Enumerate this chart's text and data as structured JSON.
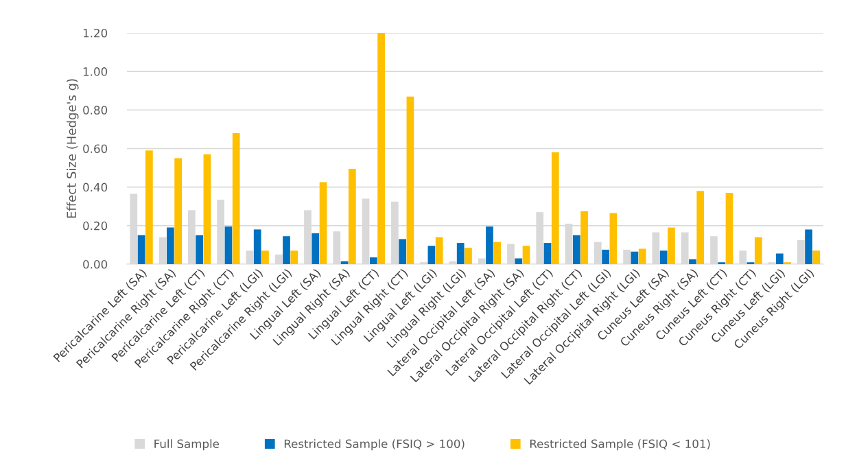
{
  "chart_data": {
    "type": "bar",
    "ylabel": "Effect Size (Hedge's g)",
    "categories": [
      "Pericalcarine Left (SA)",
      "Pericalcarine Right (SA)",
      "Pericalcarine Left (CT)",
      "Pericalcarine Right (CT)",
      "Pericalcarine Left (LGI)",
      "Pericalcarine Right (LGI)",
      "Lingual Left (SA)",
      "Lingual Right (SA)",
      "Lingual Left (CT)",
      "Lingual Right (CT)",
      "Lingual Left (LGI)",
      "Lingual Right (LGI)",
      "Lateral Occipital Left (SA)",
      "Lateral Occipital Right (SA)",
      "Lateral Occipital Left (CT)",
      "Lateral Occipital Right (CT)",
      "Lateral Occipital Left (LGI)",
      "Lateral Occipital Right (LGI)",
      "Cuneus Left (SA)",
      "Cuneus Right (SA)",
      "Cuneus Left (CT)",
      "Cuneus Right (CT)",
      "Cuneus Left (LGI)",
      "Cuneus Right (LGI)"
    ],
    "series": [
      {
        "name": "Full Sample",
        "color": "#d9d9d9",
        "values": [
          0.365,
          0.14,
          0.28,
          0.335,
          0.07,
          0.05,
          0.28,
          0.17,
          0.34,
          0.325,
          0.01,
          0.015,
          0.03,
          0.105,
          0.27,
          0.21,
          0.115,
          0.075,
          0.165,
          0.165,
          0.145,
          0.07,
          0.01,
          0.125
        ]
      },
      {
        "name": "Restricted Sample (FSIQ > 100)",
        "color": "#0070c0",
        "values": [
          0.15,
          0.19,
          0.15,
          0.195,
          0.18,
          0.145,
          0.16,
          0.015,
          0.035,
          0.13,
          0.095,
          0.11,
          0.195,
          0.03,
          0.11,
          0.15,
          0.075,
          0.065,
          0.07,
          0.025,
          0.01,
          0.01,
          0.055,
          0.18
        ]
      },
      {
        "name": "Restricted Sample (FSIQ < 101)",
        "color": "#ffc000",
        "values": [
          0.59,
          0.55,
          0.57,
          0.68,
          0.07,
          0.07,
          0.425,
          0.495,
          1.2,
          0.87,
          0.14,
          0.085,
          0.115,
          0.095,
          0.58,
          0.275,
          0.265,
          0.08,
          0.19,
          0.38,
          0.37,
          0.14,
          0.01,
          0.07
        ]
      }
    ],
    "ylim": [
      0,
      1.2
    ],
    "yticks": [
      {
        "value": 0,
        "label": "0.00"
      },
      {
        "value": 0.2,
        "label": "0.20"
      },
      {
        "value": 0.4,
        "label": "0.40"
      },
      {
        "value": 0.6,
        "label": "0.60"
      },
      {
        "value": 0.8,
        "label": "0.80"
      },
      {
        "value": 1.0,
        "label": "1.00"
      },
      {
        "value": 1.2,
        "label": "1.20"
      }
    ],
    "grid": "y",
    "legend": "bottom"
  }
}
